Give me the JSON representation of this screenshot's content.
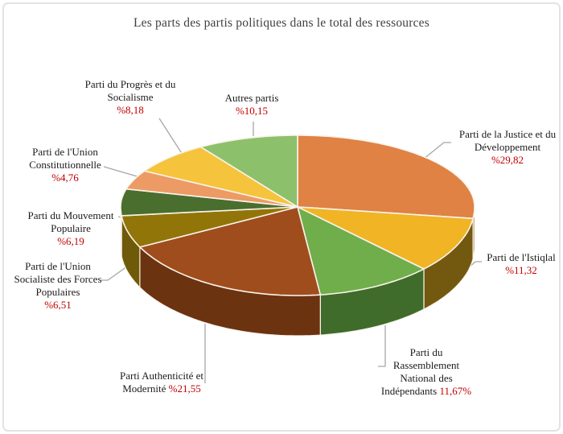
{
  "chart_data": {
    "type": "pie",
    "style": "3d",
    "title": "Les parts des partis politiques dans le total des ressources",
    "unit": "percent",
    "clockwise_from_top": true,
    "legend_position": "none",
    "value_text_color": "#c00000",
    "label_text_color": "#1b1b1b",
    "leader_line_color": "#a6a6a6",
    "separator_color": "#faf3ea",
    "background_color": "#ffffff",
    "border_color": "#e3e3e3",
    "slices": [
      {
        "id": "pjd",
        "name_lines": [
          "Parti de la Justice et du",
          "Développement"
        ],
        "value": 29.82,
        "value_label": "%29,82",
        "inline_value": false,
        "color": "#df8244",
        "side_color": "#a25a20"
      },
      {
        "id": "istiqlal",
        "name_lines": [
          "Parti de l'Istiqlal"
        ],
        "value": 11.32,
        "value_label": "%11,32",
        "inline_value": false,
        "color": "#f0b425",
        "side_color": "#73590f"
      },
      {
        "id": "rni",
        "name_lines": [
          "Parti du",
          "Rassemblement",
          "National des",
          "Indépendants"
        ],
        "value": 11.67,
        "value_label": "11,67%",
        "inline_value": true,
        "color": "#6fae4b",
        "side_color": "#3f6b2b"
      },
      {
        "id": "pam",
        "name_lines": [
          "Parti Authenticité et",
          "Modernité"
        ],
        "value": 21.55,
        "value_label": "%21,55",
        "inline_value": true,
        "color": "#a04d1d",
        "side_color": "#6b3310"
      },
      {
        "id": "usfp",
        "name_lines": [
          "Parti de l'Union",
          "Socialiste des Forces",
          "Populaires"
        ],
        "value": 6.51,
        "value_label": "%6,51",
        "inline_value": false,
        "color": "#927509",
        "side_color": "#6e5a08"
      },
      {
        "id": "mp",
        "name_lines": [
          "Parti du Mouvement",
          "Populaire"
        ],
        "value": 6.19,
        "value_label": "%6,19",
        "inline_value": false,
        "color": "#4a6e2e",
        "side_color": "#35511f"
      },
      {
        "id": "uc",
        "name_lines": [
          "Parti de l'Union",
          "Constitutionnelle"
        ],
        "value": 4.76,
        "value_label": "%4,76",
        "inline_value": false,
        "color": "#ec9b64",
        "side_color": "#b5764c"
      },
      {
        "id": "pps",
        "name_lines": [
          "Parti du Progrès et du",
          "Socialisme"
        ],
        "value": 8.18,
        "value_label": "%8,18",
        "inline_value": false,
        "color": "#f5c43c",
        "side_color": "#b08a20"
      },
      {
        "id": "autres",
        "name_lines": [
          "Autres partis"
        ],
        "value": 10.15,
        "value_label": "%10,15",
        "inline_value": false,
        "color": "#8dc06b",
        "side_color": "#5f8a45"
      }
    ]
  }
}
